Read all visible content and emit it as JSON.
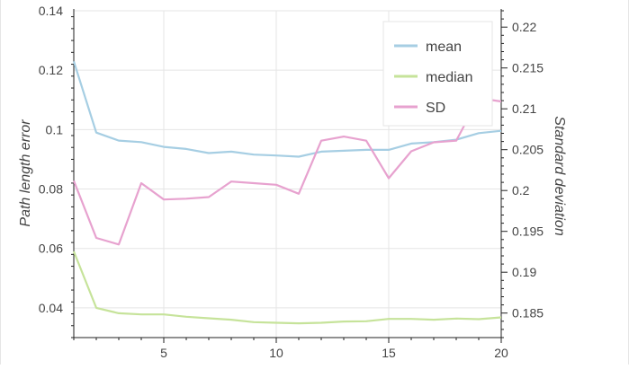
{
  "chart_data": {
    "type": "line",
    "xlabel": "",
    "ylabel": "Path length error",
    "y2label": "Standard deviation",
    "xlim": [
      1,
      20
    ],
    "ylim": [
      0.03,
      0.14
    ],
    "y2lim": [
      0.182,
      0.222
    ],
    "x_ticks": [
      5,
      10,
      15,
      20
    ],
    "y_ticks": [
      0.04,
      0.06,
      0.08,
      0.1,
      0.12,
      0.14
    ],
    "y2_ticks": [
      0.185,
      0.19,
      0.195,
      0.2,
      0.205,
      0.21,
      0.215,
      0.22
    ],
    "grid": true,
    "legend_position": "top-right",
    "x": [
      1,
      2,
      3,
      4,
      5,
      6,
      7,
      8,
      9,
      10,
      11,
      12,
      13,
      14,
      15,
      16,
      17,
      18,
      19,
      20
    ],
    "series": [
      {
        "name": "mean",
        "axis": "left",
        "color": "#a6cee3",
        "values": [
          0.123,
          0.099,
          0.0963,
          0.0958,
          0.0942,
          0.0935,
          0.0921,
          0.0926,
          0.0916,
          0.0913,
          0.0909,
          0.0926,
          0.0929,
          0.0932,
          0.0932,
          0.0953,
          0.0958,
          0.0966,
          0.0988,
          0.0996
        ]
      },
      {
        "name": "median",
        "axis": "left",
        "color": "#c6e39a",
        "values": [
          0.059,
          0.04,
          0.0382,
          0.0378,
          0.0378,
          0.037,
          0.0365,
          0.036,
          0.0352,
          0.035,
          0.0348,
          0.035,
          0.0354,
          0.0355,
          0.0363,
          0.0363,
          0.036,
          0.0364,
          0.0362,
          0.0368
        ]
      },
      {
        "name": "SD",
        "axis": "right",
        "color": "#e7a2cf",
        "values": [
          0.2012,
          0.1942,
          0.1934,
          0.2009,
          0.1989,
          0.199,
          0.1992,
          0.2011,
          0.2009,
          0.2007,
          0.1996,
          0.2061,
          0.2066,
          0.2061,
          0.2015,
          0.2048,
          0.2059,
          0.2061,
          0.2113,
          0.2109
        ]
      }
    ]
  }
}
